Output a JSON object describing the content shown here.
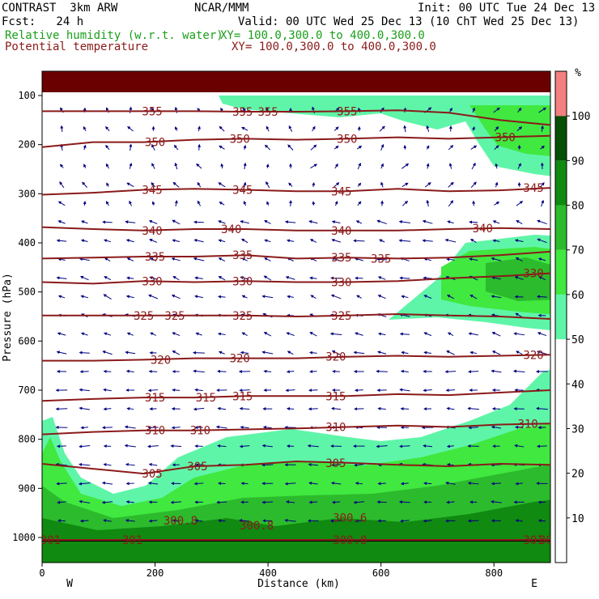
{
  "header": {
    "model": "CONTRAST  3km ARW",
    "center": "NCAR/MMM",
    "init": "Init: 00 UTC Tue 24 Dec 13",
    "fcst": "Fcst:   24 h",
    "valid": "Valid: 00 UTC Wed 25 Dec 13 (10 ChT Wed 25 Dec 13)",
    "field1": "Relative humidity (w.r.t. water)",
    "field1_xy": "XY= 100.0,300.0 to 400.0,300.0",
    "field2": "Potential temperature",
    "field2_xy": "XY= 100.0,300.0 to 400.0,300.0"
  },
  "colors": {
    "theta": "#8b1a1a",
    "rh_text": "#1a9e1a",
    "wind": "#000080",
    "rh_bands": [
      "#ffffff",
      "#ffffff",
      "#ffffff",
      "#ffffff",
      "#ffffff",
      "#5ff5a8",
      "#40e840",
      "#2cbb2c",
      "#108a10",
      "#064f06",
      "#f47f7f"
    ]
  },
  "chart_data": {
    "type": "heatmap",
    "title": "Relative humidity (w.r.t. water) / Potential temperature",
    "xlabel": "Distance (km)",
    "ylabel": "Pressure (hPa)",
    "xlim": [
      0,
      900
    ],
    "ylim": [
      1020,
      50
    ],
    "x_ticks": [
      0,
      200,
      400,
      600,
      800
    ],
    "y_ticks": [
      100,
      200,
      300,
      400,
      500,
      600,
      700,
      800,
      900,
      1000
    ],
    "x_end_labels": {
      "left": "W",
      "right": "E"
    },
    "colorbar": {
      "unit": "%",
      "levels": [
        10,
        20,
        30,
        40,
        50,
        60,
        70,
        80,
        90,
        100
      ]
    },
    "theta_contours": [
      {
        "value": 355,
        "p": [
          132,
          132,
          132,
          132,
          133,
          133,
          132,
          130,
          135,
          150,
          160
        ],
        "labels": [
          {
            "x": 195,
            "text": "355"
          },
          {
            "x": 355,
            "text": "355"
          },
          {
            "x": 400,
            "text": "355"
          },
          {
            "x": 540,
            "text": "355"
          }
        ]
      },
      {
        "value": 350,
        "p": [
          205,
          195,
          195,
          190,
          188,
          190,
          188,
          185,
          188,
          185,
          182
        ],
        "labels": [
          {
            "x": 200,
            "text": "350"
          },
          {
            "x": 350,
            "text": "350"
          },
          {
            "x": 540,
            "text": "350"
          },
          {
            "x": 820,
            "text": "350"
          }
        ]
      },
      {
        "value": 345,
        "p": [
          302,
          298,
          292,
          290,
          292,
          295,
          295,
          290,
          295,
          293,
          288
        ],
        "labels": [
          {
            "x": 195,
            "text": "345"
          },
          {
            "x": 355,
            "text": "345"
          },
          {
            "x": 530,
            "text": "345"
          },
          {
            "x": 870,
            "text": "345"
          }
        ]
      },
      {
        "value": 340,
        "p": [
          368,
          372,
          375,
          372,
          372,
          375,
          375,
          375,
          372,
          370,
          372
        ],
        "labels": [
          {
            "x": 195,
            "text": "340"
          },
          {
            "x": 335,
            "text": "340"
          },
          {
            "x": 530,
            "text": "340"
          },
          {
            "x": 780,
            "text": "340"
          }
        ]
      },
      {
        "value": 335,
        "p": [
          432,
          430,
          428,
          428,
          425,
          432,
          430,
          432,
          430,
          425,
          418
        ],
        "labels": [
          {
            "x": 200,
            "text": "335"
          },
          {
            "x": 355,
            "text": "335"
          },
          {
            "x": 530,
            "text": "335"
          },
          {
            "x": 600,
            "text": "335"
          }
        ]
      },
      {
        "value": 330,
        "p": [
          480,
          483,
          478,
          480,
          478,
          480,
          480,
          478,
          472,
          468,
          462
        ],
        "labels": [
          {
            "x": 195,
            "text": "330"
          },
          {
            "x": 355,
            "text": "330"
          },
          {
            "x": 530,
            "text": "330"
          },
          {
            "x": 870,
            "text": "330"
          }
        ]
      },
      {
        "value": 325,
        "p": [
          548,
          548,
          548,
          548,
          548,
          550,
          548,
          545,
          548,
          550,
          555
        ],
        "labels": [
          {
            "x": 180,
            "text": "325"
          },
          {
            "x": 235,
            "text": "325"
          },
          {
            "x": 355,
            "text": "325"
          },
          {
            "x": 530,
            "text": "325"
          }
        ]
      },
      {
        "value": 320,
        "p": [
          640,
          640,
          638,
          635,
          635,
          635,
          632,
          630,
          632,
          630,
          628
        ],
        "labels": [
          {
            "x": 210,
            "text": "320"
          },
          {
            "x": 350,
            "text": "320"
          },
          {
            "x": 520,
            "text": "320"
          },
          {
            "x": 870,
            "text": "320"
          }
        ]
      },
      {
        "value": 315,
        "p": [
          722,
          718,
          715,
          715,
          712,
          712,
          712,
          708,
          710,
          705,
          700
        ],
        "labels": [
          {
            "x": 200,
            "text": "315"
          },
          {
            "x": 290,
            "text": "315"
          },
          {
            "x": 355,
            "text": "315"
          },
          {
            "x": 520,
            "text": "315"
          }
        ]
      },
      {
        "value": 310,
        "p": [
          790,
          785,
          782,
          782,
          780,
          778,
          775,
          772,
          775,
          770,
          768
        ],
        "labels": [
          {
            "x": 200,
            "text": "310"
          },
          {
            "x": 280,
            "text": "310"
          },
          {
            "x": 520,
            "text": "310"
          },
          {
            "x": 860,
            "text": "310"
          }
        ]
      },
      {
        "value": 305,
        "p": [
          850,
          860,
          870,
          855,
          852,
          845,
          848,
          852,
          855,
          850,
          852
        ],
        "labels": [
          {
            "x": 195,
            "text": "305"
          },
          {
            "x": 275,
            "text": "305"
          },
          {
            "x": 520,
            "text": "305"
          }
        ]
      },
      {
        "value": 301,
        "p": [
          1005,
          1005,
          1005,
          1005,
          1005,
          1005,
          1005,
          1005,
          1005,
          1005,
          1005
        ],
        "labels": [
          {
            "x": 15,
            "text": "301"
          },
          {
            "x": 160,
            "text": "301"
          },
          {
            "x": 870,
            "text": "301"
          }
        ]
      }
    ],
    "theta_spot_labels": [
      {
        "x": 245,
        "p": 965,
        "text": "300.8"
      },
      {
        "x": 380,
        "p": 975,
        "text": "300.8"
      },
      {
        "x": 545,
        "p": 960,
        "text": "300.6"
      },
      {
        "x": 545,
        "p": 1005,
        "text": "300.8"
      },
      {
        "x": 910,
        "p": 1005,
        "text": "300.9"
      }
    ],
    "rh_regions": [
      {
        "level": 100,
        "note": "top band 60-100 hPa"
      },
      {
        "level": 50,
        "note": "upper moist tongue 100-200 hPa"
      },
      {
        "level": 50,
        "note": "mid-level moist plume 420-570 hPa"
      },
      {
        "level": 50,
        "note": "boundary layer 740-1010 hPa"
      },
      {
        "level": 90,
        "note": "surface layer 900-1010 hPa"
      }
    ]
  }
}
